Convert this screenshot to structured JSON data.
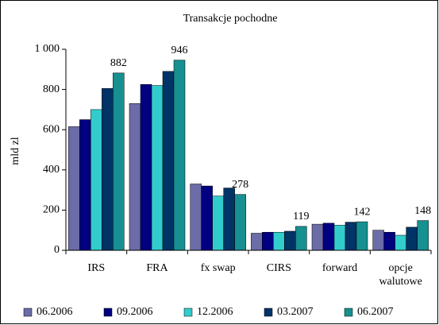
{
  "chart_data": {
    "type": "bar",
    "title": "Transakcje pochodne",
    "y_label": "mld zl",
    "categories": [
      "IRS",
      "FRA",
      "fx swap",
      "CIRS",
      "forward",
      "opcje walutowe"
    ],
    "series": [
      {
        "name": "06.2006",
        "color": "#6c6ca8",
        "values": [
          615,
          730,
          330,
          85,
          130,
          100
        ]
      },
      {
        "name": "09.2006",
        "color": "#000080",
        "values": [
          650,
          825,
          320,
          90,
          135,
          90
        ]
      },
      {
        "name": "12.2006",
        "color": "#33cccc",
        "values": [
          700,
          820,
          270,
          90,
          125,
          75
        ]
      },
      {
        "name": "03.2007",
        "color": "#003366",
        "values": [
          805,
          890,
          310,
          95,
          140,
          115
        ]
      },
      {
        "name": "06.2007",
        "color": "#169090",
        "values": [
          882,
          946,
          278,
          119,
          142,
          148
        ],
        "show_value_labels": true
      }
    ],
    "ylim": [
      0,
      1000
    ],
    "yticks": [
      0,
      200,
      400,
      600,
      800,
      {
        "value": 1000,
        "label": "1 000"
      }
    ],
    "grid": false,
    "legend": "bottom"
  }
}
